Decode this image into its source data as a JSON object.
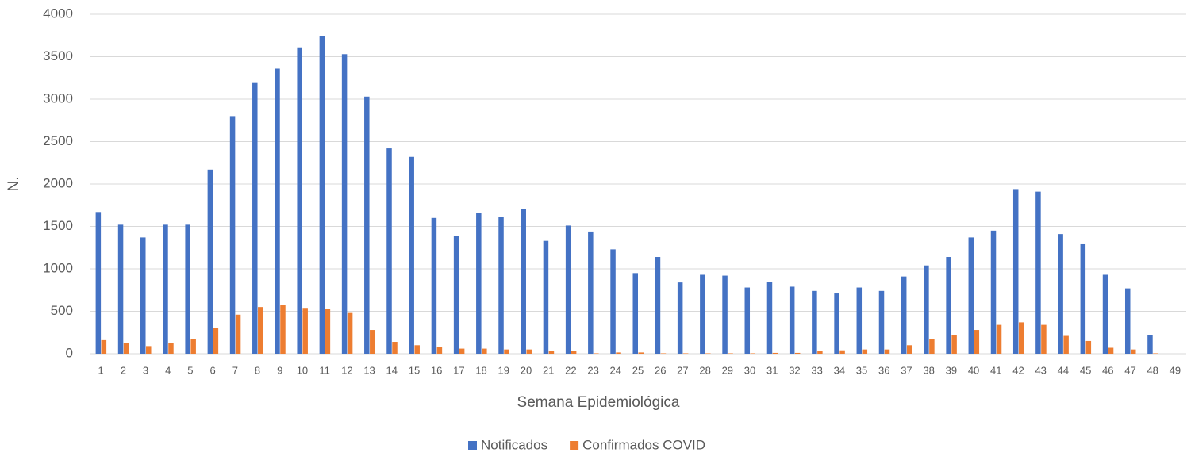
{
  "chart_data": {
    "type": "bar",
    "categories": [
      "1",
      "2",
      "3",
      "4",
      "5",
      "6",
      "7",
      "8",
      "9",
      "10",
      "11",
      "12",
      "13",
      "14",
      "15",
      "16",
      "17",
      "18",
      "19",
      "20",
      "21",
      "22",
      "23",
      "24",
      "25",
      "26",
      "27",
      "28",
      "29",
      "30",
      "31",
      "32",
      "33",
      "34",
      "35",
      "36",
      "37",
      "38",
      "39",
      "40",
      "41",
      "42",
      "43",
      "44",
      "45",
      "46",
      "47",
      "48",
      "49"
    ],
    "series": [
      {
        "name": "Notificados",
        "color": "#4472c4",
        "values": [
          1670,
          1520,
          1370,
          1520,
          1520,
          2170,
          2800,
          3190,
          3360,
          3610,
          3740,
          3530,
          3030,
          2420,
          2320,
          1600,
          1390,
          1660,
          1610,
          1710,
          1330,
          1510,
          1440,
          1230,
          950,
          1140,
          840,
          930,
          920,
          780,
          850,
          790,
          740,
          710,
          780,
          740,
          910,
          1040,
          1140,
          1370,
          1450,
          1940,
          1910,
          1410,
          1290,
          930,
          770,
          220,
          null
        ]
      },
      {
        "name": "Confirmados COVID",
        "color": "#ed7d31",
        "values": [
          160,
          130,
          90,
          130,
          170,
          300,
          460,
          550,
          570,
          540,
          530,
          480,
          280,
          140,
          100,
          80,
          60,
          60,
          50,
          50,
          30,
          30,
          5,
          15,
          15,
          5,
          5,
          5,
          5,
          5,
          10,
          10,
          30,
          40,
          50,
          50,
          100,
          170,
          220,
          280,
          340,
          370,
          340,
          210,
          150,
          70,
          50,
          5,
          null
        ]
      }
    ],
    "xlabel": "Semana Epidemiológica",
    "ylabel": "N.",
    "ylim": [
      0,
      4000
    ],
    "yticks": [
      0,
      500,
      1000,
      1500,
      2000,
      2500,
      3000,
      3500,
      4000
    ],
    "grid": true,
    "legend": "bottom"
  }
}
